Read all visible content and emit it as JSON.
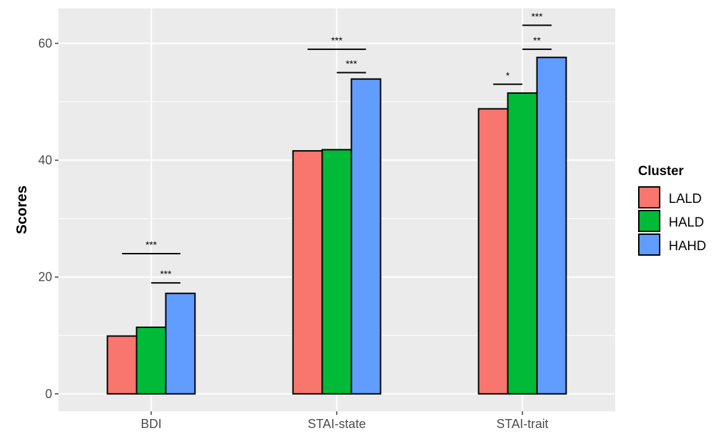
{
  "chart_data": {
    "type": "bar",
    "title": "",
    "xlabel": "",
    "ylabel": "Scores",
    "categories": [
      "BDI",
      "STAI-state",
      "STAI-trait"
    ],
    "ylim": [
      -3,
      66
    ],
    "yticks": [
      0,
      20,
      40,
      60
    ],
    "grid": true,
    "legend": {
      "title": "Cluster",
      "position": "right"
    },
    "series": [
      {
        "name": "LALD",
        "color": "#F8766D",
        "values": [
          9.9,
          41.6,
          48.8
        ]
      },
      {
        "name": "HALD",
        "color": "#00BA38",
        "values": [
          11.4,
          41.8,
          51.5
        ]
      },
      {
        "name": "HAHD",
        "color": "#619CFF",
        "values": [
          17.2,
          53.9,
          57.6
        ]
      }
    ],
    "significance": [
      {
        "category": 0,
        "from": 0,
        "to": 2,
        "y": 24.0,
        "label": "***"
      },
      {
        "category": 0,
        "from": 1,
        "to": 2,
        "y": 19.0,
        "label": "***"
      },
      {
        "category": 1,
        "from": 0,
        "to": 2,
        "y": 59.0,
        "label": "***"
      },
      {
        "category": 1,
        "from": 1,
        "to": 2,
        "y": 55.0,
        "label": "***"
      },
      {
        "category": 2,
        "from": 1,
        "to": 2,
        "y": 63.1,
        "label": "***"
      },
      {
        "category": 2,
        "from": 1,
        "to": 2,
        "y": 59.0,
        "label": "**"
      },
      {
        "category": 2,
        "from": 0,
        "to": 1,
        "y": 53.0,
        "label": "*"
      }
    ]
  }
}
